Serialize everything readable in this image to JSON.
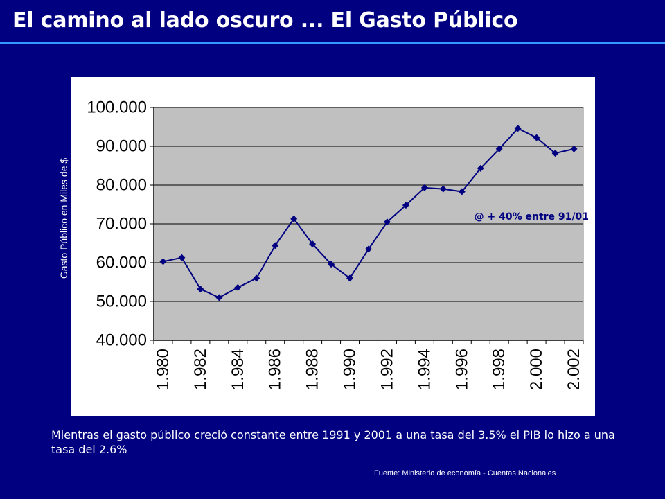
{
  "header": {
    "title": "El camino al lado oscuro ... El Gasto Público"
  },
  "chart_data": {
    "type": "line",
    "title": "",
    "xlabel": "",
    "ylabel": "Gasto Público en Miles de $",
    "ylim": [
      40000,
      100000
    ],
    "yticks": [
      "40.000",
      "50.000",
      "60.000",
      "70.000",
      "80.000",
      "90.000",
      "100.000"
    ],
    "xtick_labels": [
      "1.980",
      "1.982",
      "1.984",
      "1.986",
      "1.988",
      "1.990",
      "1.992",
      "1.994",
      "1.996",
      "1.998",
      "2.000",
      "2.002"
    ],
    "x": [
      1980,
      1981,
      1982,
      1983,
      1984,
      1985,
      1986,
      1987,
      1988,
      1989,
      1990,
      1991,
      1992,
      1993,
      1994,
      1995,
      1996,
      1997,
      1998,
      1999,
      2000,
      2001,
      2002
    ],
    "series": [
      {
        "values": [
          60300,
          61300,
          53200,
          51000,
          53600,
          56000,
          64400,
          71300,
          64800,
          59600,
          56000,
          63500,
          70500,
          74800,
          79300,
          79000,
          78300,
          84300,
          89300,
          94600,
          92200,
          88200,
          89300
        ],
        "color": "#000080"
      }
    ],
    "annotation": "@ + 40% entre 91/01",
    "grid": true,
    "plot_background": "#c0c0c0"
  },
  "footer": {
    "note": "Mientras el gasto público creció constante entre 1991 y 2001 a una tasa del 3.5% el PIB lo hizo a una tasa del 2.6%",
    "source": "Fuente: Ministerio de economía - Cuentas Nacionales"
  }
}
